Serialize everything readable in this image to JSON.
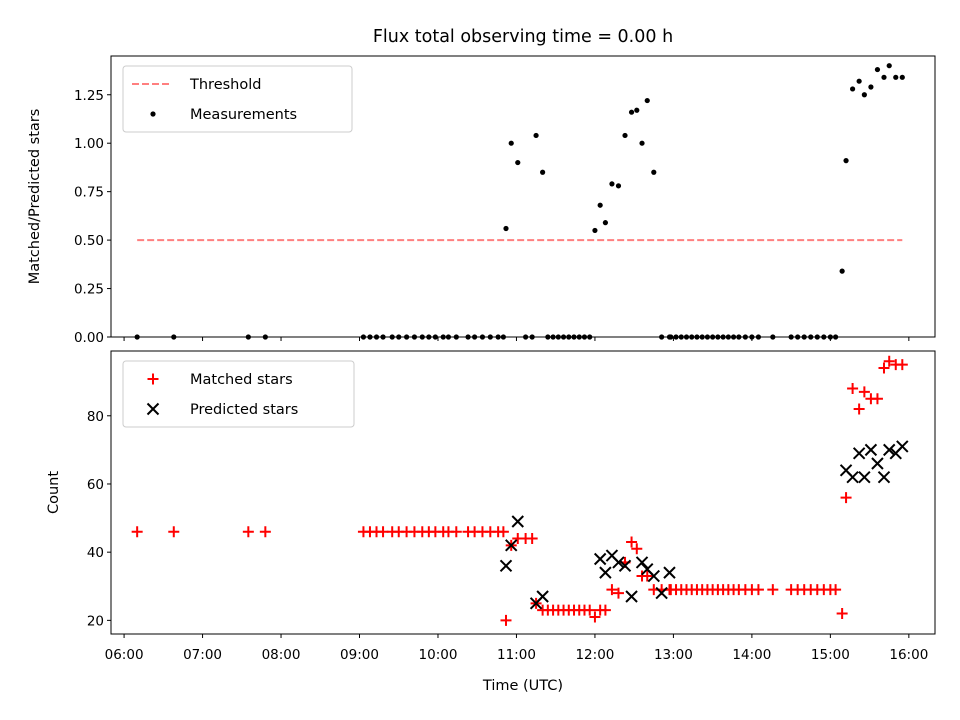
{
  "chart_data": {
    "title": "Flux total observing time = 0.00 h",
    "xlabel": "Time (UTC)",
    "x_ticks": [
      "06:00",
      "07:00",
      "08:00",
      "09:00",
      "10:00",
      "11:00",
      "12:00",
      "13:00",
      "14:00",
      "15:00",
      "16:00"
    ],
    "xlim": [
      "05:50",
      "16:20"
    ],
    "panels": [
      {
        "type": "scatter",
        "ylabel": "Matched/Predicted stars",
        "ylim": [
          0,
          1.45
        ],
        "y_ticks": [
          "0.00",
          "0.25",
          "0.50",
          "0.75",
          "1.00",
          "1.25"
        ],
        "y_tick_values": [
          0,
          0.25,
          0.5,
          0.75,
          1.0,
          1.25
        ],
        "legend_position": "upper-left",
        "series": [
          {
            "name": "Threshold",
            "type": "line",
            "style": "dashed",
            "color": "#ff7f7f",
            "x": [
              "06:10",
              "15:55"
            ],
            "y": [
              0.5,
              0.5
            ]
          },
          {
            "name": "Measurements",
            "type": "scatter",
            "marker": "dot",
            "color": "#000000",
            "x": [
              "06:10",
              "06:38",
              "07:35",
              "07:48",
              "09:03",
              "09:08",
              "09:13",
              "09:18",
              "09:25",
              "09:30",
              "09:36",
              "09:42",
              "09:48",
              "09:53",
              "09:58",
              "10:04",
              "10:08",
              "10:14",
              "10:23",
              "10:28",
              "10:34",
              "10:40",
              "10:46",
              "10:50",
              "10:52",
              "10:56",
              "11:01",
              "11:07",
              "11:12",
              "11:15",
              "11:20",
              "11:24",
              "11:28",
              "11:32",
              "11:36",
              "11:40",
              "11:44",
              "11:48",
              "11:52",
              "11:56",
              "12:00",
              "12:04",
              "12:08",
              "12:13",
              "12:18",
              "12:23",
              "12:28",
              "12:32",
              "12:36",
              "12:40",
              "12:45",
              "12:51",
              "12:57",
              "12:58",
              "13:02",
              "13:06",
              "13:10",
              "13:14",
              "13:18",
              "13:22",
              "13:26",
              "13:30",
              "13:34",
              "13:38",
              "13:42",
              "13:46",
              "13:50",
              "13:55",
              "14:00",
              "14:05",
              "14:16",
              "14:30",
              "14:35",
              "14:40",
              "14:45",
              "14:50",
              "14:55",
              "15:00",
              "15:04",
              "15:09",
              "15:12",
              "15:17",
              "15:22",
              "15:26",
              "15:31",
              "15:36",
              "15:41",
              "15:45",
              "15:50",
              "15:55"
            ],
            "y": [
              0,
              0,
              0,
              0,
              0,
              0,
              0,
              0,
              0,
              0,
              0,
              0,
              0,
              0,
              0,
              0,
              0,
              0,
              0,
              0,
              0,
              0,
              0,
              0,
              0.56,
              1.0,
              0.9,
              0,
              0,
              1.04,
              0.85,
              0,
              0,
              0,
              0,
              0,
              0,
              0,
              0,
              0,
              0.55,
              0.68,
              0.59,
              0.79,
              0.78,
              1.04,
              1.16,
              1.17,
              1.0,
              1.22,
              0.85,
              0,
              0,
              0,
              0,
              0,
              0,
              0,
              0,
              0,
              0,
              0,
              0,
              0,
              0,
              0,
              0,
              0,
              0,
              0,
              0,
              0,
              0,
              0,
              0,
              0,
              0,
              0,
              0,
              0.34,
              0.91,
              1.28,
              1.32,
              1.25,
              1.29,
              1.38,
              1.34,
              1.4,
              1.34,
              1.34
            ]
          }
        ]
      },
      {
        "type": "scatter",
        "ylabel": "Count",
        "ylim": [
          16,
          99
        ],
        "y_ticks": [
          "20",
          "40",
          "60",
          "80"
        ],
        "y_tick_values": [
          20,
          40,
          60,
          80
        ],
        "legend_position": "upper-left",
        "series": [
          {
            "name": "Matched stars",
            "type": "scatter",
            "marker": "plus",
            "color": "#ff0000",
            "x": [
              "06:10",
              "06:38",
              "07:35",
              "07:48",
              "09:03",
              "09:08",
              "09:13",
              "09:18",
              "09:25",
              "09:30",
              "09:36",
              "09:42",
              "09:48",
              "09:53",
              "09:58",
              "10:04",
              "10:08",
              "10:14",
              "10:23",
              "10:28",
              "10:34",
              "10:40",
              "10:46",
              "10:50",
              "10:52",
              "10:56",
              "11:01",
              "11:07",
              "11:12",
              "11:15",
              "11:20",
              "11:24",
              "11:28",
              "11:32",
              "11:36",
              "11:40",
              "11:44",
              "11:48",
              "11:52",
              "11:56",
              "12:00",
              "12:04",
              "12:08",
              "12:13",
              "12:18",
              "12:23",
              "12:28",
              "12:32",
              "12:36",
              "12:40",
              "12:45",
              "12:51",
              "12:57",
              "12:58",
              "13:02",
              "13:06",
              "13:10",
              "13:14",
              "13:18",
              "13:22",
              "13:26",
              "13:30",
              "13:34",
              "13:38",
              "13:42",
              "13:46",
              "13:50",
              "13:55",
              "14:00",
              "14:05",
              "14:16",
              "14:30",
              "14:35",
              "14:40",
              "14:45",
              "14:50",
              "14:55",
              "15:00",
              "15:04",
              "15:09",
              "15:12",
              "15:17",
              "15:22",
              "15:26",
              "15:31",
              "15:36",
              "15:41",
              "15:45",
              "15:50",
              "15:55"
            ],
            "y": [
              46,
              46,
              46,
              46,
              46,
              46,
              46,
              46,
              46,
              46,
              46,
              46,
              46,
              46,
              46,
              46,
              46,
              46,
              46,
              46,
              46,
              46,
              46,
              46,
              20,
              42,
              44,
              44,
              44,
              25,
              23,
              23,
              23,
              23,
              23,
              23,
              23,
              23,
              23,
              23,
              21,
              23,
              23,
              29,
              28,
              37,
              43,
              41,
              33,
              33,
              29,
              29,
              29,
              29,
              29,
              29,
              29,
              29,
              29,
              29,
              29,
              29,
              29,
              29,
              29,
              29,
              29,
              29,
              29,
              29,
              29,
              29,
              29,
              29,
              29,
              29,
              29,
              29,
              29,
              22,
              56,
              88,
              82,
              87,
              85,
              85,
              94,
              96,
              95,
              95
            ]
          },
          {
            "name": "Predicted stars",
            "type": "scatter",
            "marker": "x",
            "color": "#000000",
            "x": [
              "10:52",
              "10:56",
              "11:01",
              "11:15",
              "11:20",
              "12:04",
              "12:08",
              "12:13",
              "12:18",
              "12:23",
              "12:28",
              "12:36",
              "12:40",
              "12:45",
              "12:51",
              "12:57",
              "15:12",
              "15:17",
              "15:22",
              "15:26",
              "15:31",
              "15:36",
              "15:41",
              "15:45",
              "15:50",
              "15:55"
            ],
            "y": [
              36,
              42,
              49,
              25,
              27,
              38,
              34,
              39,
              37,
              36,
              27,
              37,
              35,
              33,
              28,
              34,
              64,
              62,
              69,
              62,
              70,
              66,
              62,
              70,
              69,
              71
            ]
          }
        ]
      }
    ]
  }
}
